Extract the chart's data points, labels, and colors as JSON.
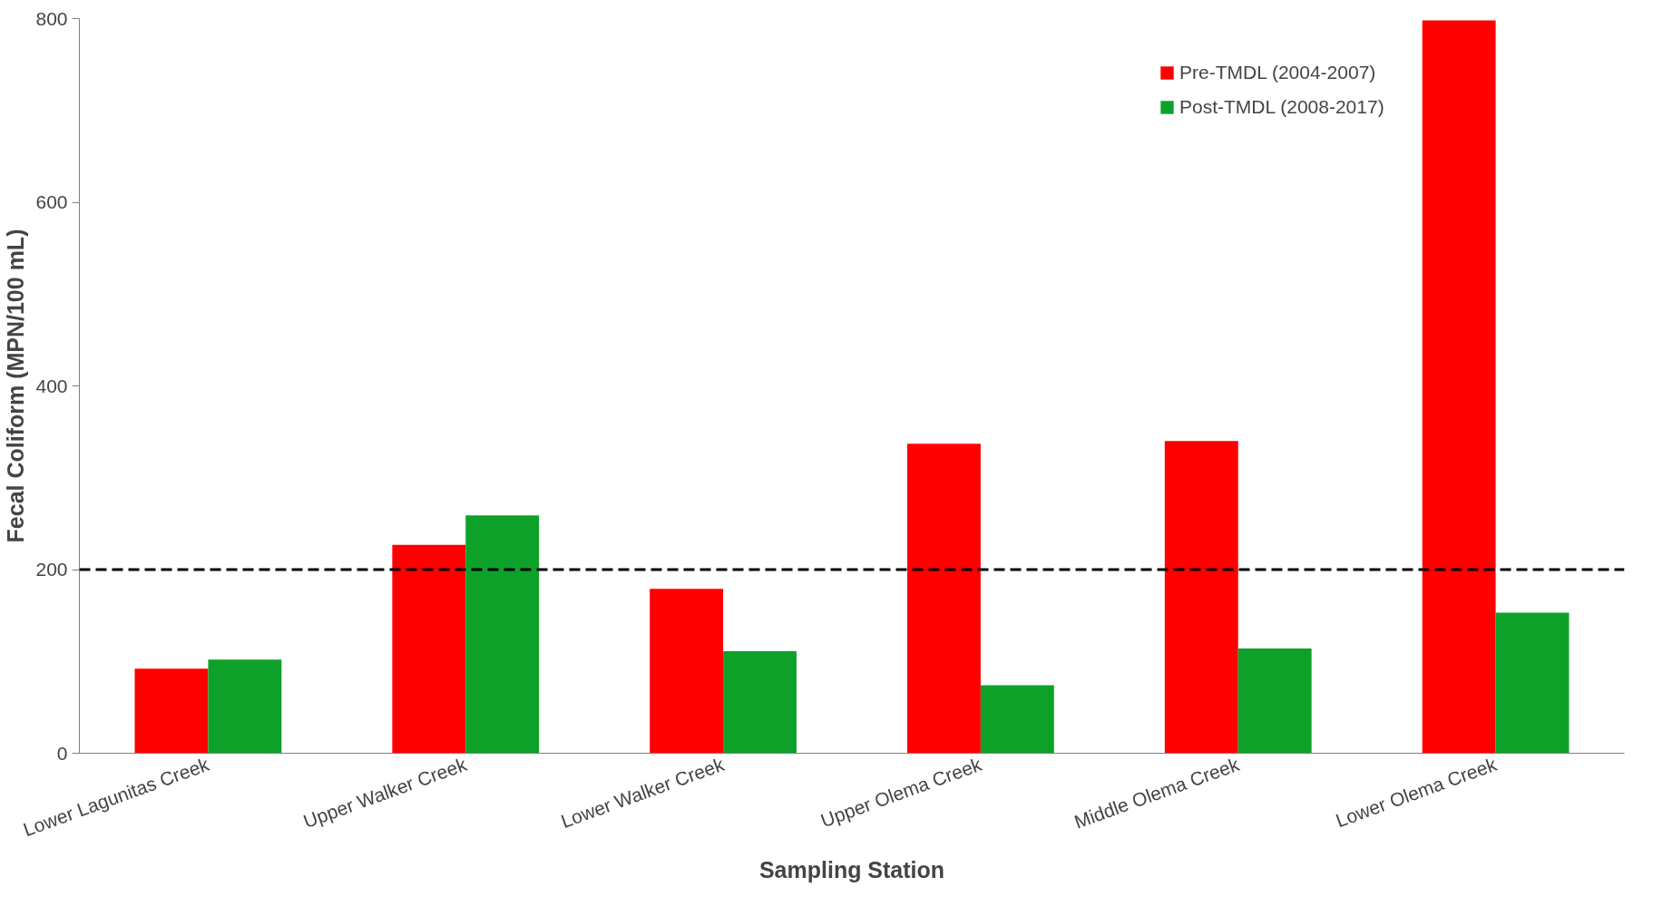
{
  "chart_data": {
    "type": "bar",
    "xlabel": "Sampling Station",
    "ylabel": "Fecal Coliform (MPN/100 mL)",
    "categories": [
      "Lower Lagunitas Creek",
      "Upper Walker Creek",
      "Lower Walker Creek",
      "Upper Olema Creek",
      "Middle Olema Creek",
      "Lower Olema Creek"
    ],
    "series": [
      {
        "name": "Pre-TMDL (2004-2007)",
        "color": "#ff0000",
        "values": [
          92,
          227,
          179,
          337,
          340,
          798
        ]
      },
      {
        "name": "Post-TMDL (2008-2017)",
        "color": "#0ea12a",
        "values": [
          102,
          259,
          111,
          74,
          114,
          153
        ]
      }
    ],
    "ylim": [
      0,
      800
    ],
    "yticks": [
      0,
      200,
      400,
      600,
      800
    ],
    "ref_lines": [
      {
        "axis": "y",
        "value": 200,
        "label": null,
        "color": "#000000",
        "line_style": "dashed"
      }
    ],
    "grid": false,
    "legend": "top right"
  }
}
